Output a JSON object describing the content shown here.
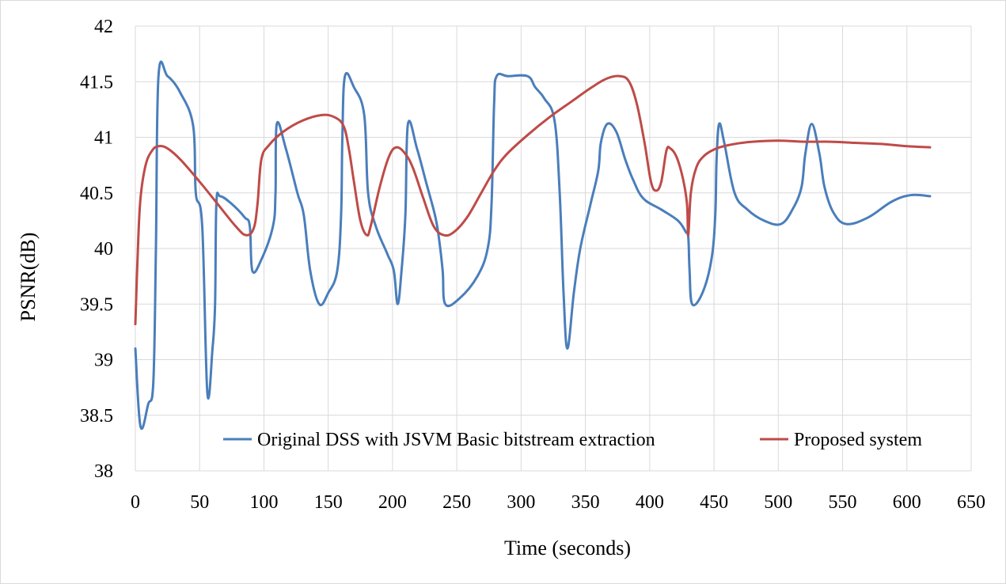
{
  "chart_data": {
    "type": "line",
    "xlabel": "Time (seconds)",
    "ylabel": "PSNR(dB)",
    "xlim": [
      0,
      650
    ],
    "ylim": [
      38,
      42
    ],
    "xticks": [
      0,
      50,
      100,
      150,
      200,
      250,
      300,
      350,
      400,
      450,
      500,
      550,
      600,
      650
    ],
    "yticks": [
      38,
      38.5,
      39,
      39.5,
      40,
      40.5,
      41,
      41.5,
      42
    ],
    "grid": true,
    "legend_position": "bottom-right",
    "series": [
      {
        "name": "Original DSS with JSVM Basic bitstream extraction",
        "color": "#4a7ebb",
        "points": [
          [
            0,
            39.1
          ],
          [
            4,
            38.4
          ],
          [
            10,
            38.6
          ],
          [
            14,
            38.8
          ],
          [
            16,
            40.0
          ],
          [
            18,
            41.55
          ],
          [
            25,
            41.55
          ],
          [
            35,
            41.4
          ],
          [
            45,
            41.1
          ],
          [
            47,
            40.5
          ],
          [
            52,
            40.2
          ],
          [
            56,
            38.7
          ],
          [
            60,
            39.1
          ],
          [
            62,
            39.5
          ],
          [
            63,
            40.4
          ],
          [
            66,
            40.47
          ],
          [
            75,
            40.4
          ],
          [
            85,
            40.28
          ],
          [
            89,
            40.2
          ],
          [
            91,
            39.8
          ],
          [
            98,
            39.9
          ],
          [
            107,
            40.2
          ],
          [
            109,
            40.5
          ],
          [
            110,
            41.12
          ],
          [
            117,
            40.9
          ],
          [
            126,
            40.5
          ],
          [
            131,
            40.3
          ],
          [
            136,
            39.8
          ],
          [
            143,
            39.5
          ],
          [
            150,
            39.6
          ],
          [
            157,
            39.8
          ],
          [
            160,
            40.3
          ],
          [
            161,
            41.0
          ],
          [
            163,
            41.55
          ],
          [
            170,
            41.45
          ],
          [
            178,
            41.2
          ],
          [
            181,
            40.5
          ],
          [
            187,
            40.2
          ],
          [
            196,
            39.95
          ],
          [
            201,
            39.8
          ],
          [
            204,
            39.5
          ],
          [
            207,
            39.8
          ],
          [
            210,
            40.3
          ],
          [
            212,
            41.12
          ],
          [
            219,
            40.9
          ],
          [
            226,
            40.6
          ],
          [
            233,
            40.3
          ],
          [
            236,
            40.1
          ],
          [
            239,
            39.8
          ],
          [
            241,
            39.5
          ],
          [
            252,
            39.55
          ],
          [
            266,
            39.75
          ],
          [
            274,
            40.0
          ],
          [
            277,
            40.4
          ],
          [
            279,
            41.3
          ],
          [
            281,
            41.55
          ],
          [
            290,
            41.55
          ],
          [
            305,
            41.55
          ],
          [
            311,
            41.45
          ],
          [
            318,
            41.35
          ],
          [
            326,
            41.15
          ],
          [
            330,
            40.5
          ],
          [
            333,
            39.6
          ],
          [
            336,
            39.1
          ],
          [
            341,
            39.6
          ],
          [
            346,
            40.0
          ],
          [
            354,
            40.4
          ],
          [
            360,
            40.7
          ],
          [
            362,
            40.95
          ],
          [
            367,
            41.12
          ],
          [
            374,
            41.05
          ],
          [
            381,
            40.8
          ],
          [
            387,
            40.62
          ],
          [
            395,
            40.45
          ],
          [
            409,
            40.35
          ],
          [
            422,
            40.25
          ],
          [
            428,
            40.15
          ],
          [
            430,
            40.1
          ],
          [
            431,
            39.8
          ],
          [
            433,
            39.5
          ],
          [
            441,
            39.6
          ],
          [
            448,
            39.9
          ],
          [
            451,
            40.3
          ],
          [
            452,
            40.8
          ],
          [
            454,
            41.12
          ],
          [
            458,
            40.95
          ],
          [
            466,
            40.5
          ],
          [
            476,
            40.35
          ],
          [
            489,
            40.25
          ],
          [
            502,
            40.22
          ],
          [
            511,
            40.35
          ],
          [
            518,
            40.55
          ],
          [
            521,
            40.85
          ],
          [
            526,
            41.12
          ],
          [
            532,
            40.85
          ],
          [
            536,
            40.55
          ],
          [
            543,
            40.32
          ],
          [
            553,
            40.22
          ],
          [
            570,
            40.28
          ],
          [
            588,
            40.42
          ],
          [
            603,
            40.48
          ],
          [
            618,
            40.47
          ]
        ]
      },
      {
        "name": "Proposed system",
        "color": "#be4b48",
        "points": [
          [
            0,
            39.32
          ],
          [
            2,
            40.0
          ],
          [
            4,
            40.45
          ],
          [
            8,
            40.75
          ],
          [
            13,
            40.88
          ],
          [
            18,
            40.92
          ],
          [
            25,
            40.9
          ],
          [
            35,
            40.8
          ],
          [
            50,
            40.6
          ],
          [
            64,
            40.4
          ],
          [
            78,
            40.2
          ],
          [
            86,
            40.12
          ],
          [
            92,
            40.18
          ],
          [
            95,
            40.4
          ],
          [
            98,
            40.8
          ],
          [
            104,
            40.93
          ],
          [
            115,
            41.05
          ],
          [
            130,
            41.15
          ],
          [
            145,
            41.2
          ],
          [
            155,
            41.18
          ],
          [
            162,
            41.1
          ],
          [
            166,
            40.9
          ],
          [
            170,
            40.6
          ],
          [
            175,
            40.25
          ],
          [
            180,
            40.12
          ],
          [
            183,
            40.2
          ],
          [
            190,
            40.55
          ],
          [
            197,
            40.82
          ],
          [
            203,
            40.91
          ],
          [
            210,
            40.85
          ],
          [
            216,
            40.72
          ],
          [
            224,
            40.45
          ],
          [
            232,
            40.2
          ],
          [
            240,
            40.12
          ],
          [
            248,
            40.15
          ],
          [
            258,
            40.28
          ],
          [
            269,
            40.5
          ],
          [
            279,
            40.7
          ],
          [
            289,
            40.85
          ],
          [
            305,
            41.02
          ],
          [
            322,
            41.18
          ],
          [
            339,
            41.32
          ],
          [
            355,
            41.45
          ],
          [
            367,
            41.53
          ],
          [
            377,
            41.55
          ],
          [
            384,
            41.5
          ],
          [
            390,
            41.3
          ],
          [
            396,
            40.95
          ],
          [
            401,
            40.6
          ],
          [
            405,
            40.52
          ],
          [
            409,
            40.6
          ],
          [
            413,
            40.88
          ],
          [
            416,
            40.9
          ],
          [
            421,
            40.82
          ],
          [
            426,
            40.62
          ],
          [
            429,
            40.4
          ],
          [
            430,
            40.12
          ],
          [
            432,
            40.5
          ],
          [
            436,
            40.72
          ],
          [
            442,
            40.83
          ],
          [
            452,
            40.9
          ],
          [
            466,
            40.94
          ],
          [
            480,
            40.96
          ],
          [
            500,
            40.97
          ],
          [
            520,
            40.96
          ],
          [
            540,
            40.96
          ],
          [
            560,
            40.95
          ],
          [
            580,
            40.94
          ],
          [
            600,
            40.92
          ],
          [
            618,
            40.91
          ]
        ]
      }
    ]
  }
}
